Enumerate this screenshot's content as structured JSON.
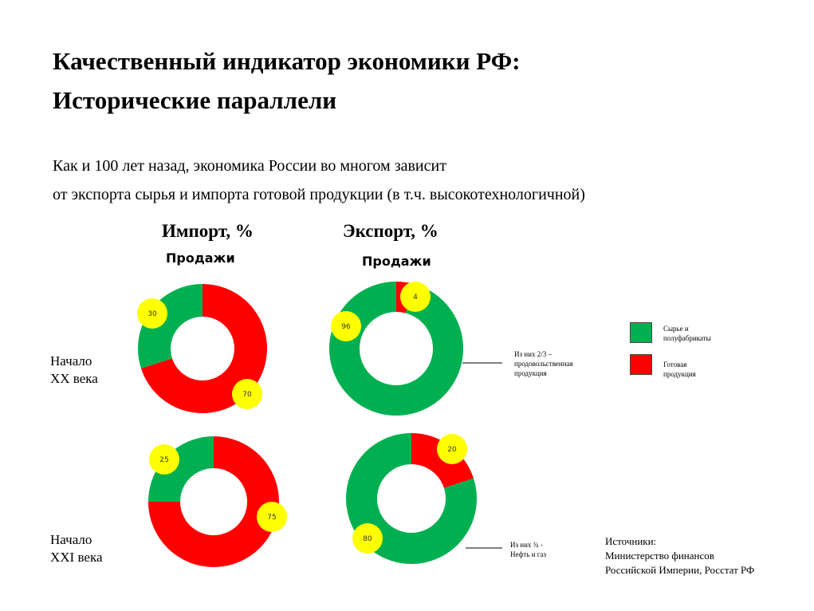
{
  "title_line1": "Качественный индикатор экономики РФ:",
  "title_line2": "Исторические параллели",
  "subtitle_line1": "Как и 100 лет назад, экономика России во многом зависит",
  "subtitle_line2": "от экспорта сырья и импорта готовой продукции (в т.ч.  высокотехнологичной)",
  "import_header": "Импорт, %",
  "export_header": "Экспорт, %",
  "import_sales": "Продажи",
  "export_sales": "Продажи",
  "row1_line1": "Начало",
  "row1_line2": "XX века",
  "row2_line1": "Начало",
  "row2_line2": "XXI века",
  "note1_line1": "Из них 2/3 –",
  "note1_line2": "продовольственная",
  "note1_line3": "продукция",
  "note2_line1": "Из них ¾ -",
  "note2_line2": "Нефть и газ",
  "legend": [
    {
      "line1": "Сырье и",
      "line2": "полуфабрикаты",
      "color": "#00b050"
    },
    {
      "line1": "Готовая",
      "line2": "продукция",
      "color": "#ff0000"
    }
  ],
  "sources_line1": "Источники:",
  "sources_line2": "Министерство финансов",
  "sources_line3": "Российской Империи, Росстат РФ",
  "colors": {
    "raw": "#00b050",
    "finished": "#ff0000",
    "badge": "#ffff00"
  },
  "chart_data": [
    {
      "type": "pie",
      "name": "Импорт, начало XX века",
      "categories": [
        "Сырье и полуфабрикаты",
        "Готовая продукция"
      ],
      "values": [
        30,
        70
      ]
    },
    {
      "type": "pie",
      "name": "Экспорт, начало XX века",
      "categories": [
        "Сырье и полуфабрикаты",
        "Готовая продукция"
      ],
      "values": [
        96,
        4
      ]
    },
    {
      "type": "pie",
      "name": "Импорт, начало XXI века",
      "categories": [
        "Сырье и полуфабрикаты",
        "Готовая продукция"
      ],
      "values": [
        25,
        75
      ]
    },
    {
      "type": "pie",
      "name": "Экспорт, начало XXI века",
      "categories": [
        "Сырье и полуфабрикаты",
        "Готовая продукция"
      ],
      "values": [
        80,
        20
      ]
    }
  ]
}
